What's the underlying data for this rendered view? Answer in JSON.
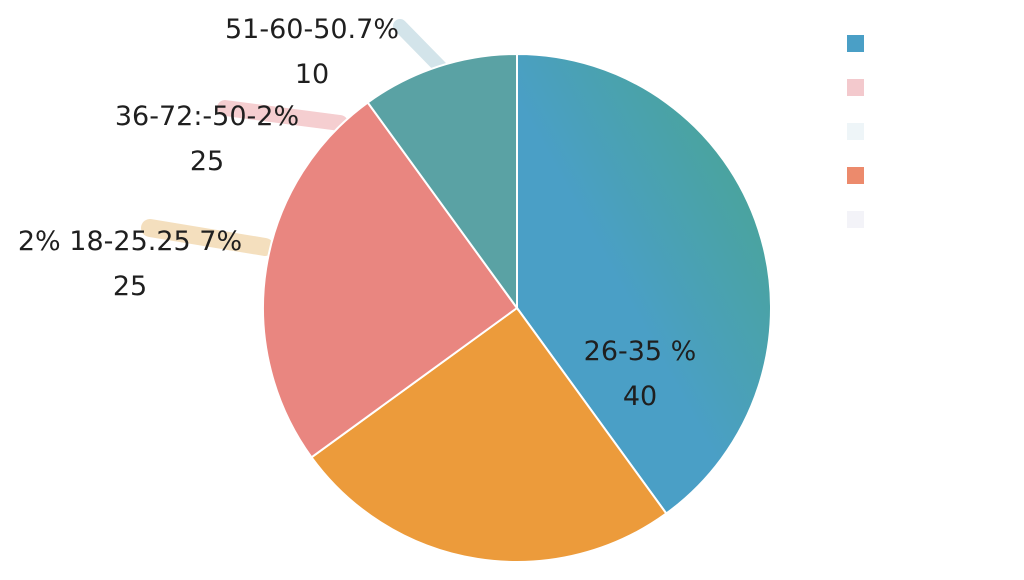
{
  "chart_data": {
    "type": "pie",
    "slices": [
      {
        "label": "26-35 %",
        "value": 40,
        "color": "#4a9fc6",
        "color2": "#4aa688",
        "label_pos": "inside"
      },
      {
        "label": "2% 18-25.25 7%",
        "value": 25,
        "color": "#ec9b3b",
        "label_pos": "outside"
      },
      {
        "label": "36-72:-50-2%",
        "value": 25,
        "color": "#e98680",
        "label_pos": "outside"
      },
      {
        "label": "51-60-50.7%",
        "value": 10,
        "color": "#5aa2a4",
        "label_pos": "outside"
      }
    ],
    "legend": {
      "placement": "top-right",
      "swatch_colors": [
        "#4a9fc6",
        "#f3c9cd",
        "#eef5f8",
        "#ec8a6c",
        "#f3f3f8"
      ]
    }
  }
}
